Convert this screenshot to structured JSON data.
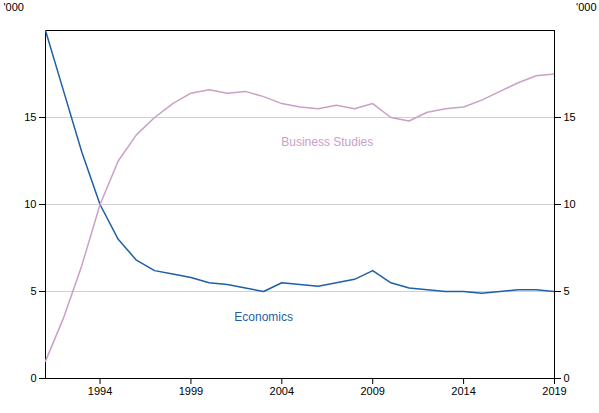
{
  "chart_data": {
    "type": "line",
    "x": [
      1991,
      1992,
      1993,
      1994,
      1995,
      1996,
      1997,
      1998,
      1999,
      2000,
      2001,
      2002,
      2003,
      2004,
      2005,
      2006,
      2007,
      2008,
      2009,
      2010,
      2011,
      2012,
      2013,
      2014,
      2015,
      2016,
      2017,
      2018,
      2019
    ],
    "series": [
      {
        "name": "Economics",
        "color": "#1f5fa6",
        "values": [
          20.0,
          16.5,
          13.0,
          10.0,
          8.0,
          6.8,
          6.2,
          6.0,
          5.8,
          5.5,
          5.4,
          5.2,
          5.0,
          5.5,
          5.4,
          5.3,
          5.5,
          5.7,
          6.2,
          5.5,
          5.2,
          5.1,
          5.0,
          5.0,
          4.9,
          5.0,
          5.1,
          5.1,
          5.0
        ]
      },
      {
        "name": "Business Studies",
        "color": "#c9a0c8",
        "axis": "y2",
        "values": [
          1.0,
          3.5,
          6.5,
          10.0,
          12.5,
          14.0,
          15.0,
          15.8,
          16.4,
          16.6,
          16.4,
          16.5,
          16.2,
          15.8,
          15.6,
          15.5,
          15.7,
          15.5,
          15.8,
          15.0,
          14.8,
          15.3,
          15.5,
          15.6,
          16.0,
          16.5,
          17.0,
          17.4,
          17.5
        ]
      }
    ],
    "xlim": [
      1991,
      2019
    ],
    "xticks": [
      1994,
      1999,
      2004,
      2009,
      2014,
      2019
    ],
    "ylim": [
      0,
      20
    ],
    "yticks": [
      0,
      5,
      10,
      15
    ],
    "y2lim": [
      0,
      20
    ],
    "y2ticks": [
      0,
      5,
      10,
      15
    ],
    "ylabel": "'000",
    "y2label": "'000",
    "grid": true,
    "annotations": [
      {
        "text": "Economics",
        "x": 2003,
        "y": 3.5,
        "color": "#1f5fa6"
      },
      {
        "text": "Business Studies",
        "x": 2006.5,
        "y": 13.6,
        "color": "#c9a0c8"
      }
    ]
  }
}
